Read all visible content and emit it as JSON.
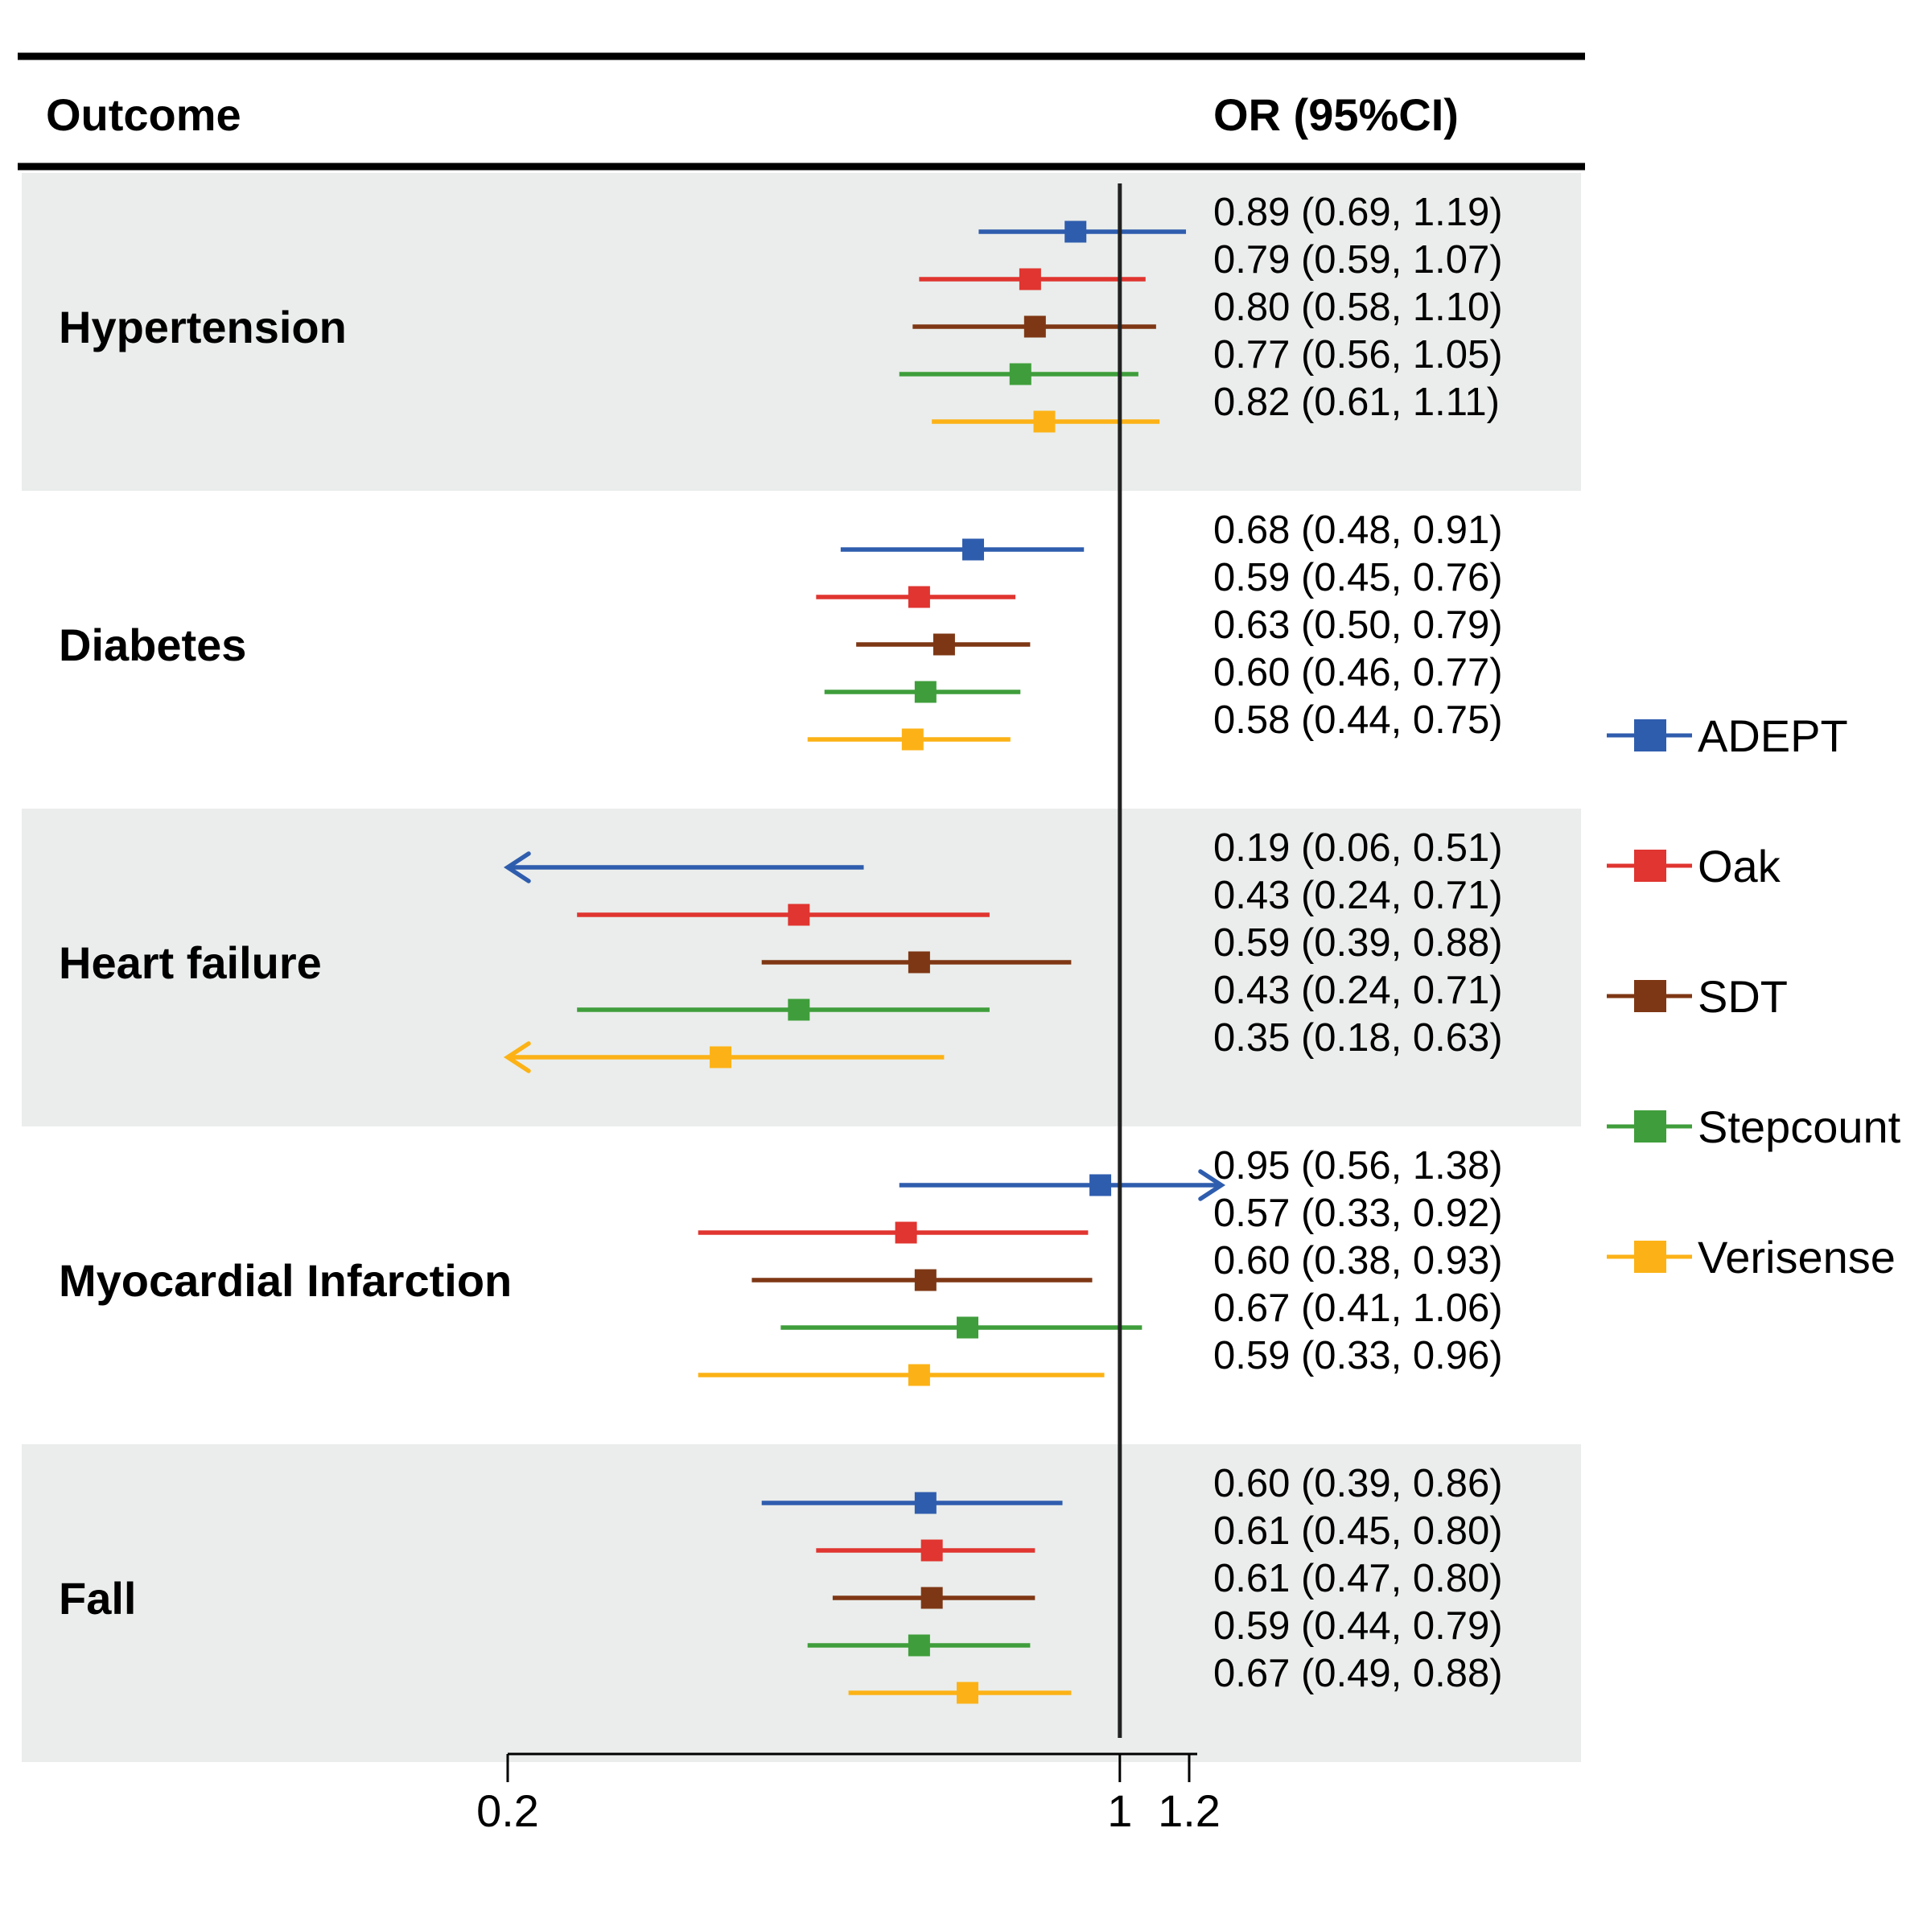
{
  "chart_data": {
    "type": "forest",
    "header": {
      "outcome_label": "Outcome",
      "or_label": "OR (95%CI)"
    },
    "x_axis": {
      "ticks": [
        0.2,
        1,
        1.2
      ],
      "tick_labels": [
        "0.2",
        "1",
        "1.2"
      ],
      "reference_line": 1,
      "xlim": [
        0.2,
        1.2
      ]
    },
    "series": [
      {
        "name": "ADEPT",
        "color": "#2F5DAE"
      },
      {
        "name": "Oak",
        "color": "#E03530"
      },
      {
        "name": "SDT",
        "color": "#7E3714"
      },
      {
        "name": "Stepcount",
        "color": "#3F9E3B"
      },
      {
        "name": "Verisense",
        "color": "#FCB216"
      }
    ],
    "groups": [
      {
        "outcome": "Hypertension",
        "rows": [
          {
            "or": 0.89,
            "lo": 0.69,
            "hi": 1.19,
            "label": "0.89 (0.69, 1.19)"
          },
          {
            "or": 0.79,
            "lo": 0.59,
            "hi": 1.07,
            "label": "0.79 (0.59, 1.07)"
          },
          {
            "or": 0.8,
            "lo": 0.58,
            "hi": 1.1,
            "label": "0.80 (0.58, 1.10)"
          },
          {
            "or": 0.77,
            "lo": 0.56,
            "hi": 1.05,
            "label": "0.77 (0.56, 1.05)"
          },
          {
            "or": 0.82,
            "lo": 0.61,
            "hi": 1.11,
            "label": "0.82 (0.61, 1.11)"
          }
        ]
      },
      {
        "outcome": "Diabetes",
        "rows": [
          {
            "or": 0.68,
            "lo": 0.48,
            "hi": 0.91,
            "label": "0.68 (0.48, 0.91)"
          },
          {
            "or": 0.59,
            "lo": 0.45,
            "hi": 0.76,
            "label": "0.59 (0.45, 0.76)"
          },
          {
            "or": 0.63,
            "lo": 0.5,
            "hi": 0.79,
            "label": "0.63 (0.50, 0.79)"
          },
          {
            "or": 0.6,
            "lo": 0.46,
            "hi": 0.77,
            "label": "0.60 (0.46, 0.77)"
          },
          {
            "or": 0.58,
            "lo": 0.44,
            "hi": 0.75,
            "label": "0.58 (0.44, 0.75)"
          }
        ]
      },
      {
        "outcome": "Heart failure",
        "rows": [
          {
            "or": 0.19,
            "lo": 0.06,
            "hi": 0.51,
            "label": "0.19 (0.06, 0.51)"
          },
          {
            "or": 0.43,
            "lo": 0.24,
            "hi": 0.71,
            "label": "0.43 (0.24, 0.71)"
          },
          {
            "or": 0.59,
            "lo": 0.39,
            "hi": 0.88,
            "label": "0.59 (0.39, 0.88)"
          },
          {
            "or": 0.43,
            "lo": 0.24,
            "hi": 0.71,
            "label": "0.43 (0.24, 0.71)"
          },
          {
            "or": 0.35,
            "lo": 0.18,
            "hi": 0.63,
            "label": "0.35 (0.18, 0.63)"
          }
        ]
      },
      {
        "outcome": "Myocardial Infarction",
        "rows": [
          {
            "or": 0.95,
            "lo": 0.56,
            "hi": 1.38,
            "label": "0.95 (0.56, 1.38)"
          },
          {
            "or": 0.57,
            "lo": 0.33,
            "hi": 0.92,
            "label": "0.57 (0.33, 0.92)"
          },
          {
            "or": 0.6,
            "lo": 0.38,
            "hi": 0.93,
            "label": "0.60 (0.38, 0.93)"
          },
          {
            "or": 0.67,
            "lo": 0.41,
            "hi": 1.06,
            "label": "0.67 (0.41, 1.06)"
          },
          {
            "or": 0.59,
            "lo": 0.33,
            "hi": 0.96,
            "label": "0.59 (0.33, 0.96)"
          }
        ]
      },
      {
        "outcome": "Fall",
        "rows": [
          {
            "or": 0.6,
            "lo": 0.39,
            "hi": 0.86,
            "label": "0.60 (0.39, 0.86)"
          },
          {
            "or": 0.61,
            "lo": 0.45,
            "hi": 0.8,
            "label": "0.61 (0.45, 0.80)"
          },
          {
            "or": 0.61,
            "lo": 0.47,
            "hi": 0.8,
            "label": "0.61 (0.47, 0.80)"
          },
          {
            "or": 0.59,
            "lo": 0.44,
            "hi": 0.79,
            "label": "0.59 (0.44, 0.79)"
          },
          {
            "or": 0.67,
            "lo": 0.49,
            "hi": 0.88,
            "label": "0.67 (0.49, 0.88)"
          }
        ]
      }
    ]
  }
}
